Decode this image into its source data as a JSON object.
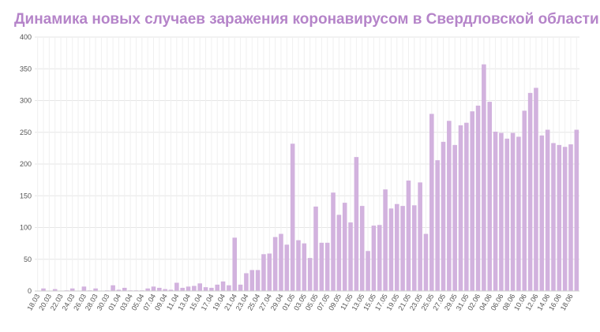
{
  "chart_data": {
    "type": "bar",
    "title": "Динамика новых случаев заражения коронавирусом в Свердловской области",
    "categories": [
      "18.03",
      null,
      "20.03",
      null,
      "22.03",
      null,
      "24.03",
      null,
      "26.03",
      null,
      "28.03",
      null,
      "30.03",
      null,
      "01.04",
      null,
      "03.04",
      null,
      "05.04",
      null,
      "07.04",
      null,
      "09.04",
      null,
      "11.04",
      null,
      "13.04",
      null,
      "15.04",
      null,
      "17.04",
      null,
      "19.04",
      null,
      "21.04",
      null,
      "23.04",
      null,
      "25.04",
      null,
      "27.04",
      null,
      "29.04",
      null,
      "01.05",
      null,
      "03.05",
      null,
      "05.05",
      null,
      "07.05",
      null,
      "09.05",
      null,
      "11.05",
      null,
      "13.05",
      null,
      "15.05",
      null,
      "17.05",
      null,
      "19.05",
      null,
      "21.05",
      null,
      "23.05",
      null,
      "25.05",
      null,
      "27.05",
      null,
      "29.05",
      null,
      "31.05",
      null,
      "02.06",
      null,
      "04.06",
      null,
      "06.06",
      null,
      "08.06",
      null,
      "10.06",
      null,
      "12.06",
      null,
      "14.06",
      null,
      "16.06",
      null,
      "18.06",
      null
    ],
    "values": [
      0,
      4,
      0,
      3,
      0,
      1,
      4,
      0,
      7,
      1,
      4,
      0,
      1,
      9,
      2,
      5,
      1,
      1,
      1,
      4,
      7,
      5,
      3,
      2,
      13,
      5,
      7,
      8,
      12,
      6,
      5,
      10,
      15,
      9,
      84,
      10,
      28,
      33,
      33,
      58,
      59,
      85,
      90,
      73,
      232,
      80,
      75,
      52,
      133,
      76,
      76,
      155,
      120,
      139,
      108,
      211,
      134,
      63,
      103,
      104,
      160,
      130,
      137,
      134,
      174,
      135,
      171,
      90,
      279,
      206,
      235,
      268,
      230,
      261,
      265,
      283,
      292,
      357,
      298,
      251,
      249,
      240,
      249,
      243,
      284,
      312,
      320,
      245,
      254,
      233,
      230,
      227,
      231,
      254
    ],
    "color": "#d2b2de",
    "ylim": [
      0,
      400
    ],
    "yticks": [
      0,
      50,
      100,
      150,
      200,
      250,
      300,
      350,
      400
    ],
    "grid": true
  }
}
